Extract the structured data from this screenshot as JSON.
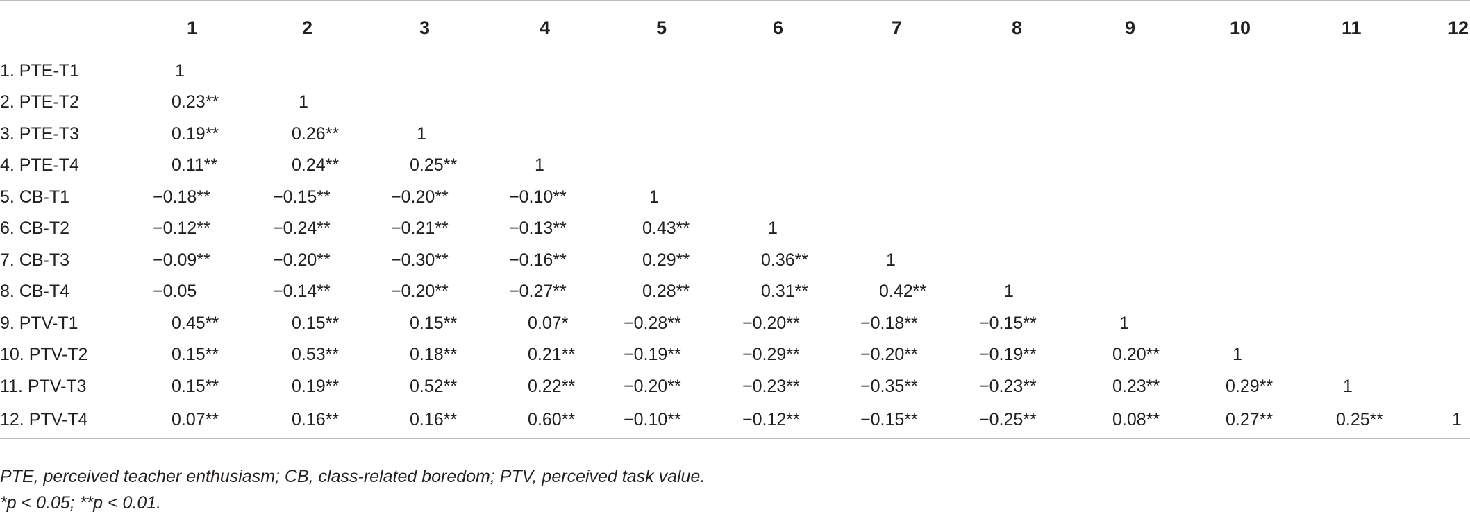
{
  "table": {
    "column_headers": [
      "",
      "1",
      "2",
      "3",
      "4",
      "5",
      "6",
      "7",
      "8",
      "9",
      "10",
      "11",
      "12"
    ],
    "rows": [
      {
        "label": "1. PTE-T1",
        "cells": [
          "1",
          "",
          "",
          "",
          "",
          "",
          "",
          "",
          "",
          "",
          "",
          ""
        ]
      },
      {
        "label": "2. PTE-T2",
        "cells": [
          "0.23**",
          "1",
          "",
          "",
          "",
          "",
          "",
          "",
          "",
          "",
          "",
          ""
        ]
      },
      {
        "label": "3. PTE-T3",
        "cells": [
          "0.19**",
          "0.26**",
          "1",
          "",
          "",
          "",
          "",
          "",
          "",
          "",
          "",
          ""
        ]
      },
      {
        "label": "4. PTE-T4",
        "cells": [
          "0.11**",
          "0.24**",
          "0.25**",
          "1",
          "",
          "",
          "",
          "",
          "",
          "",
          "",
          ""
        ]
      },
      {
        "label": "5. CB-T1",
        "cells": [
          "−0.18**",
          "−0.15**",
          "−0.20**",
          "−0.10**",
          "1",
          "",
          "",
          "",
          "",
          "",
          "",
          ""
        ]
      },
      {
        "label": "6. CB-T2",
        "cells": [
          "−0.12**",
          "−0.24**",
          "−0.21**",
          "−0.13**",
          "0.43**",
          "1",
          "",
          "",
          "",
          "",
          "",
          ""
        ]
      },
      {
        "label": "7. CB-T3",
        "cells": [
          "−0.09**",
          "−0.20**",
          "−0.30**",
          "−0.16**",
          "0.29**",
          "0.36**",
          "1",
          "",
          "",
          "",
          "",
          ""
        ]
      },
      {
        "label": "8. CB-T4",
        "cells": [
          "−0.05",
          "−0.14**",
          "−0.20**",
          "−0.27**",
          "0.28**",
          "0.31**",
          "0.42**",
          "1",
          "",
          "",
          "",
          ""
        ]
      },
      {
        "label": "9. PTV-T1",
        "cells": [
          "0.45**",
          "0.15**",
          "0.15**",
          "0.07*",
          "−0.28**",
          "−0.20**",
          "−0.18**",
          "−0.15**",
          "1",
          "",
          "",
          ""
        ]
      },
      {
        "label": "10. PTV-T2",
        "cells": [
          "0.15**",
          "0.53**",
          "0.18**",
          "0.21**",
          "−0.19**",
          "−0.29**",
          "−0.20**",
          "−0.19**",
          "0.20**",
          "1",
          "",
          ""
        ]
      },
      {
        "label": "11. PTV-T3",
        "cells": [
          "0.15**",
          "0.19**",
          "0.52**",
          "0.22**",
          "−0.20**",
          "−0.23**",
          "−0.35**",
          "−0.23**",
          "0.23**",
          "0.29**",
          "1",
          ""
        ]
      },
      {
        "label": "12. PTV-T4",
        "cells": [
          "0.07**",
          "0.16**",
          "0.16**",
          "0.60**",
          "−0.10**",
          "−0.12**",
          "−0.15**",
          "−0.25**",
          "0.08**",
          "0.27**",
          "0.25**",
          "1"
        ]
      }
    ]
  },
  "footnotes": {
    "abbreviations": "PTE, perceived teacher enthusiasm; CB, class-related boredom; PTV, perceived task value.",
    "significance": "*p < 0.05; **p < 0.01."
  }
}
